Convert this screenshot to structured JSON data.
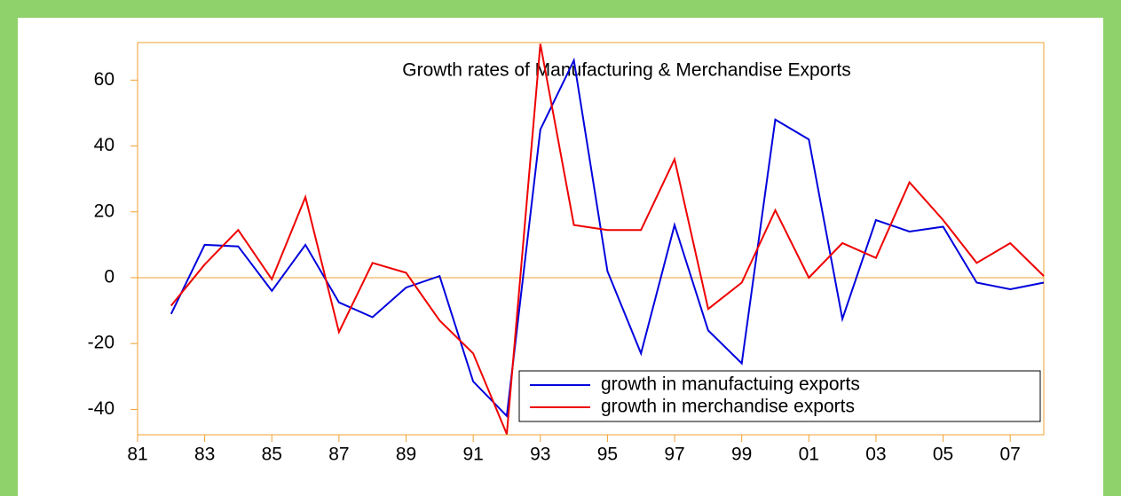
{
  "chart_data": {
    "type": "line",
    "title": "Growth rates of Manufacturing & Merchandise Exports",
    "x": [
      1982,
      1983,
      1984,
      1985,
      1986,
      1987,
      1988,
      1989,
      1990,
      1991,
      1992,
      1993,
      1994,
      1995,
      1996,
      1997,
      1998,
      1999,
      2000,
      2001,
      2002,
      2003,
      2004,
      2005,
      2006,
      2007,
      2008
    ],
    "series": [
      {
        "name": "growth in manufactuing exports",
        "color": "#0000dd",
        "values": [
          -11,
          10,
          9.5,
          -4,
          10,
          -7.5,
          -12,
          -3,
          0.5,
          -31.5,
          -42,
          45,
          66,
          2,
          -23,
          16,
          -16,
          -26,
          48,
          42,
          -12.5,
          17.5,
          14,
          15.5,
          -1.5,
          -3.5,
          -1.5
        ]
      },
      {
        "name": "growth in merchandise exports",
        "color": "#ee0000",
        "values": [
          -8.5,
          4,
          14.5,
          -0.5,
          24.5,
          -16.5,
          4.5,
          1.5,
          -13,
          -23,
          -47.5,
          71,
          16,
          14.5,
          14.5,
          36,
          -9.5,
          -1.5,
          20.5,
          0,
          10.5,
          6,
          29,
          17.5,
          4.5,
          10.5,
          0.5
        ]
      }
    ],
    "xlim": [
      1981,
      2008
    ],
    "xticks": [
      {
        "value": 1981,
        "label": "81"
      },
      {
        "value": 1983,
        "label": "83"
      },
      {
        "value": 1985,
        "label": "85"
      },
      {
        "value": 1987,
        "label": "87"
      },
      {
        "value": 1989,
        "label": "89"
      },
      {
        "value": 1991,
        "label": "91"
      },
      {
        "value": 1993,
        "label": "93"
      },
      {
        "value": 1995,
        "label": "95"
      },
      {
        "value": 1997,
        "label": "97"
      },
      {
        "value": 1999,
        "label": "99"
      },
      {
        "value": 2001,
        "label": "01"
      },
      {
        "value": 2003,
        "label": "03"
      },
      {
        "value": 2005,
        "label": "05"
      },
      {
        "value": 2007,
        "label": "07"
      }
    ],
    "ylim": [
      -47.7,
      71.4
    ],
    "yticks": [
      -40,
      -20,
      0,
      20,
      40,
      60
    ],
    "zero_line": true,
    "legend": "lower right"
  }
}
